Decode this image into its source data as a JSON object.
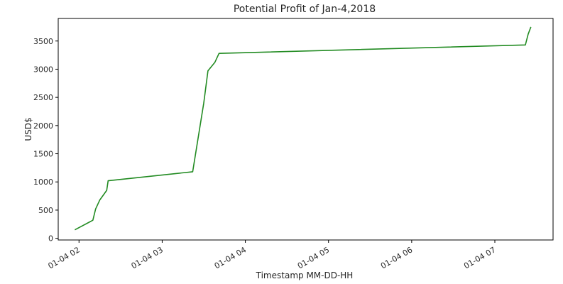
{
  "chart_data": {
    "type": "line",
    "title": "Potential Profit of Jan-4,2018",
    "xlabel": "Timestamp MM-DD-HH",
    "ylabel": "USD$",
    "x_tick_labels": [
      "01-04 02",
      "01-04 03",
      "01-04 04",
      "01-04 05",
      "01-04 06",
      "01-04 07"
    ],
    "x_tick_values": [
      "2018-01-04 02:00",
      "2018-01-04 03:00",
      "2018-01-04 04:00",
      "2018-01-04 05:00",
      "2018-01-04 06:00",
      "2018-01-04 07:00"
    ],
    "xlim": [
      "2018-01-04 01:45",
      "2018-01-04 07:42"
    ],
    "y_ticks": [
      0,
      500,
      1000,
      1500,
      2000,
      2500,
      3000,
      3500
    ],
    "ylim": [
      -30,
      3900
    ],
    "grid": false,
    "series": [
      {
        "color": "#228b22",
        "x": [
          "2018-01-04 01:57",
          "2018-01-04 02:10",
          "2018-01-04 02:12",
          "2018-01-04 02:15",
          "2018-01-04 02:20",
          "2018-01-04 02:21",
          "2018-01-04 03:22",
          "2018-01-04 03:30",
          "2018-01-04 03:33",
          "2018-01-04 03:38",
          "2018-01-04 03:41",
          "2018-01-04 07:22",
          "2018-01-04 07:24",
          "2018-01-04 07:26"
        ],
        "y": [
          150,
          320,
          520,
          680,
          850,
          1020,
          1180,
          2400,
          2970,
          3120,
          3280,
          3430,
          3620,
          3750
        ]
      }
    ]
  }
}
